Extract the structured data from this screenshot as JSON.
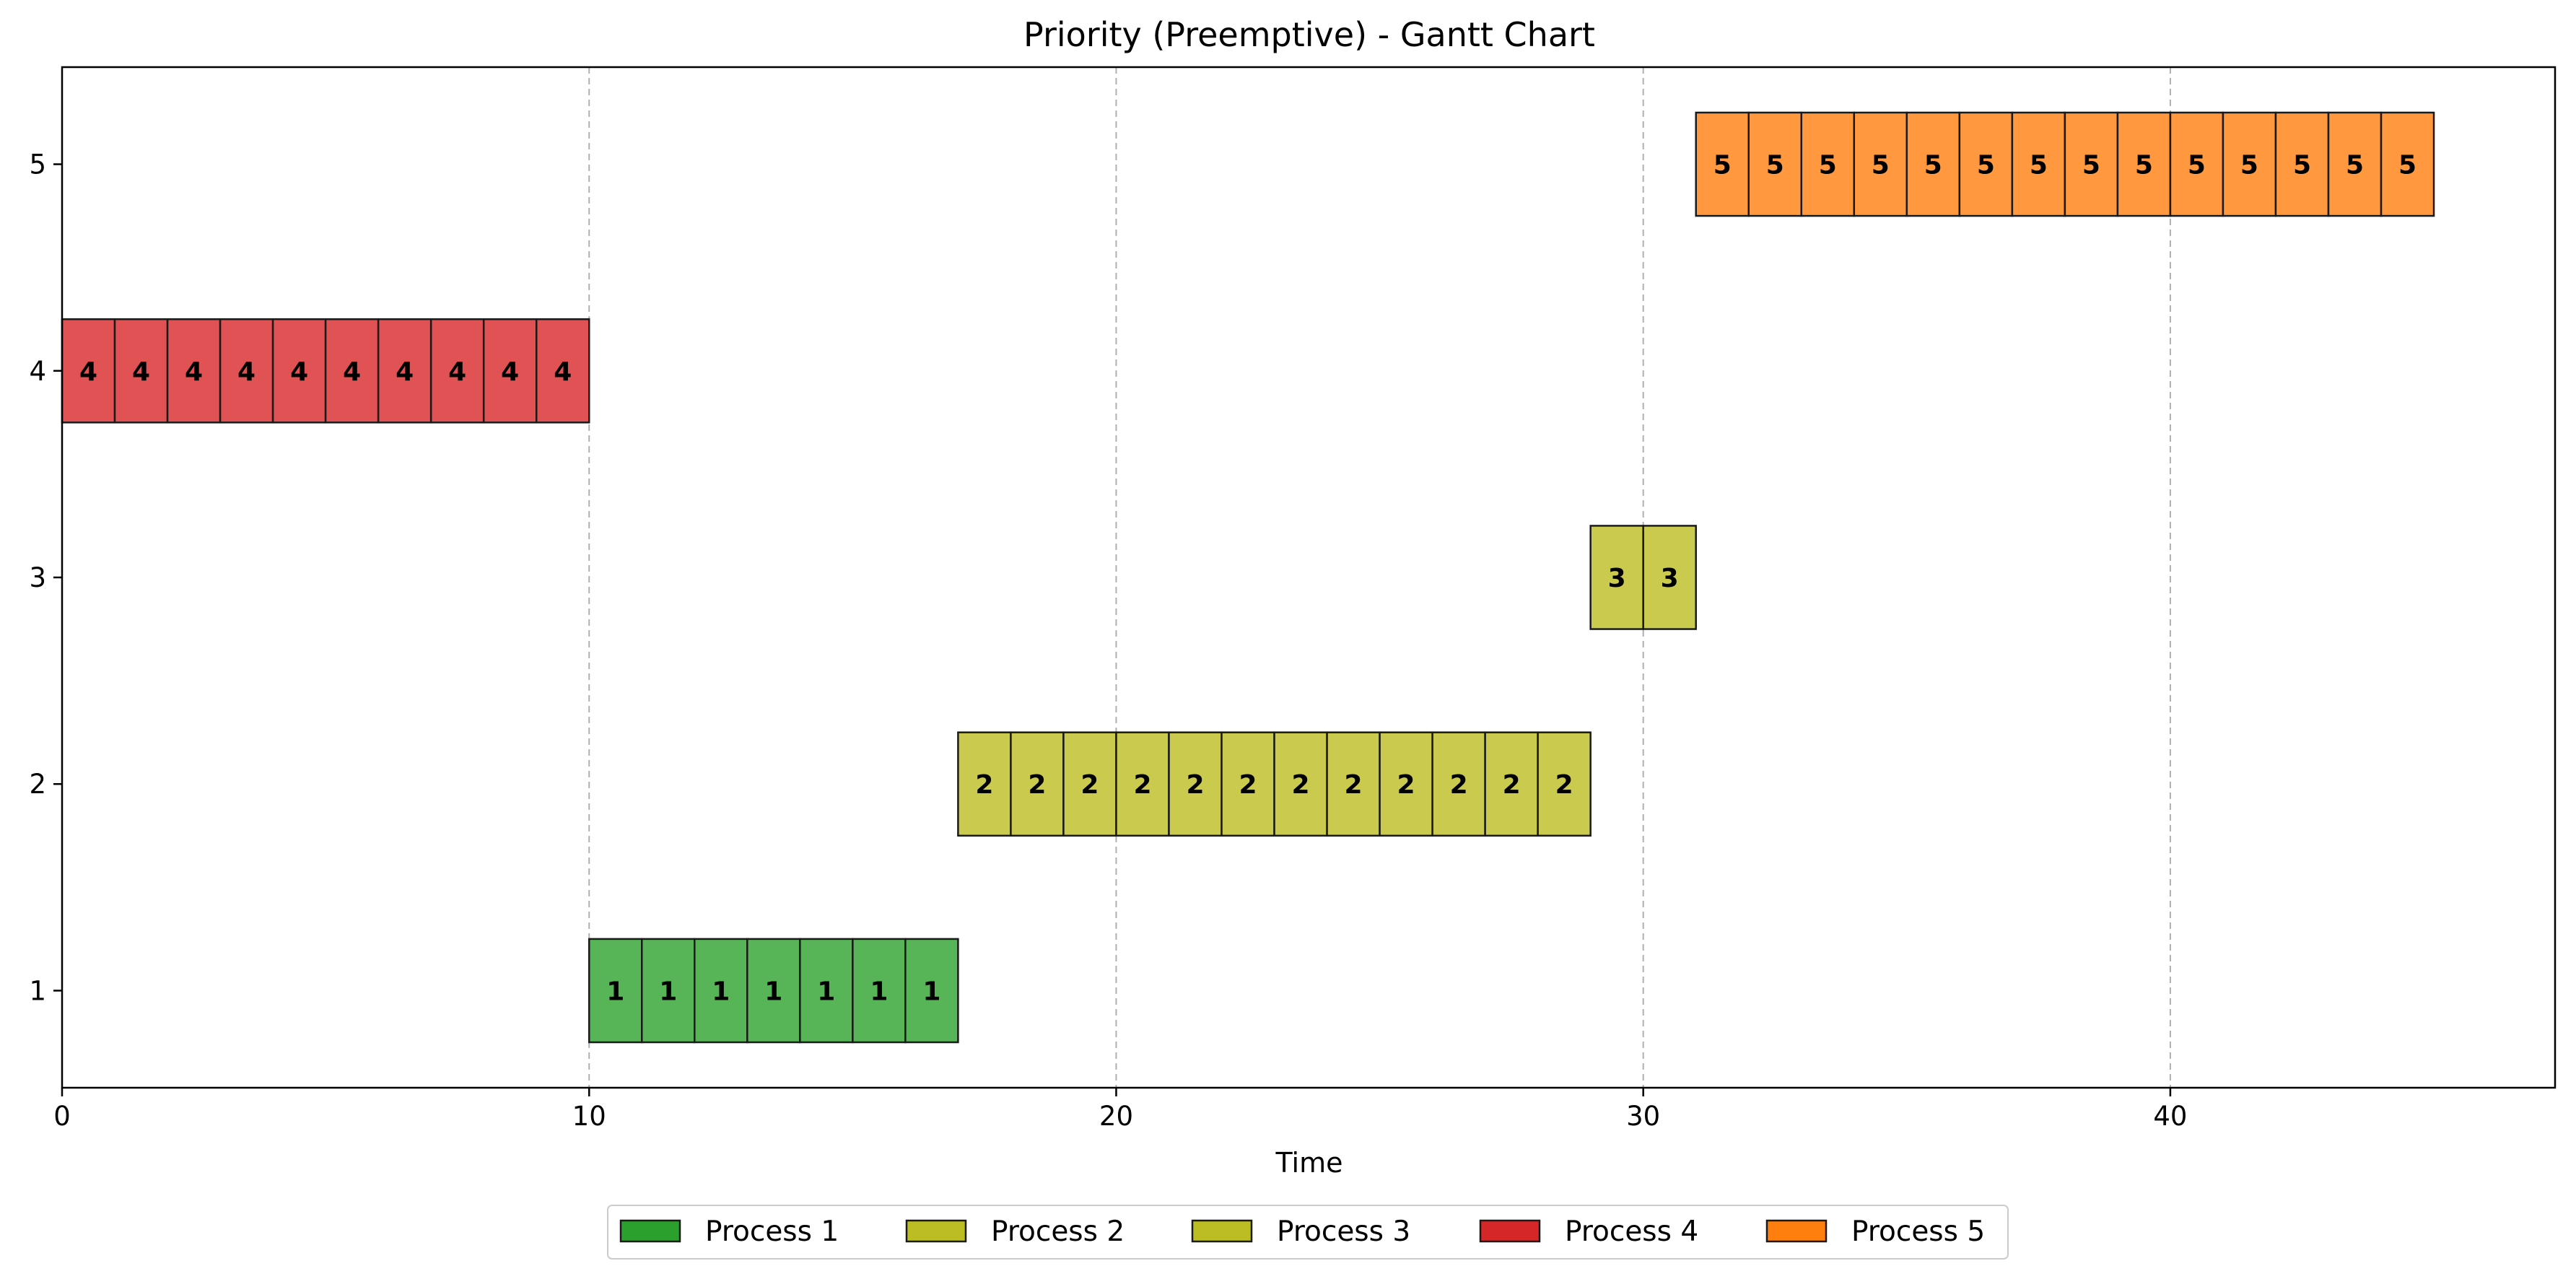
{
  "chart_data": {
    "type": "gantt",
    "title": "Priority (Preemptive) - Gantt Chart",
    "xlabel": "Time",
    "ylabel": "",
    "xlim": [
      0,
      47.3
    ],
    "ylim": [
      0.53,
      5.47
    ],
    "xticks": [
      0,
      10,
      20,
      30,
      40
    ],
    "yticks": [
      1,
      2,
      3,
      4,
      5
    ],
    "grid": "vertical dashed lines at x ticks",
    "legend_placement": "bottom-center, below axis",
    "series": [
      {
        "name": "Process 1",
        "row": 1,
        "label": "1",
        "color": "#2ca02c",
        "fill": "#57b557",
        "slots": [
          10,
          11,
          12,
          13,
          14,
          15,
          16
        ]
      },
      {
        "name": "Process 2",
        "row": 2,
        "label": "2",
        "color": "#bcbd22",
        "fill": "#c9ca4e",
        "slots": [
          17,
          18,
          19,
          20,
          21,
          22,
          23,
          24,
          25,
          26,
          27,
          28
        ]
      },
      {
        "name": "Process 3",
        "row": 3,
        "label": "3",
        "color": "#bcbd22",
        "fill": "#c9ca4e",
        "slots": [
          29,
          30
        ]
      },
      {
        "name": "Process 4",
        "row": 4,
        "label": "4",
        "color": "#d62728",
        "fill": "#e05254",
        "slots": [
          0,
          1,
          2,
          3,
          4,
          5,
          6,
          7,
          8,
          9
        ]
      },
      {
        "name": "Process 5",
        "row": 5,
        "label": "5",
        "color": "#ff7f0e",
        "fill": "#ff983e",
        "slots": [
          31,
          32,
          33,
          34,
          35,
          36,
          37,
          38,
          39,
          40,
          41,
          42,
          43,
          44
        ]
      }
    ]
  }
}
